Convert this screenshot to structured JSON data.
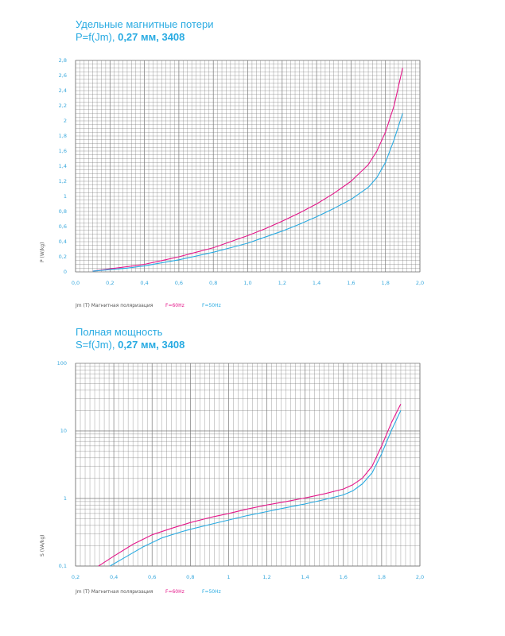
{
  "chart_data": [
    {
      "type": "line",
      "title": "Удельные магнитные потери",
      "subtitle_prefix": "P=f(Jm), ",
      "subtitle_bold": "0,27 мм, 3408",
      "xlabel": "Jm (T) Магнитная поляризация",
      "ylabel": "P (W/kg)",
      "xlim": [
        0,
        2.0
      ],
      "ylim": [
        0,
        2.8
      ],
      "x_ticks": [
        "0,0",
        "0,2",
        "0,4",
        "0,6",
        "0,8",
        "1,0",
        "1,2",
        "1,4",
        "1,6",
        "1,8",
        "2,0"
      ],
      "y_ticks": [
        "0",
        "0,2",
        "0,4",
        "0,6",
        "0,8",
        "1",
        "1,2",
        "1,4",
        "1,6",
        "1,8",
        "2",
        "2,2",
        "2,4",
        "2,6",
        "2,8"
      ],
      "grid": true,
      "series": [
        {
          "name": "F=60Hz",
          "color": "#e5178a",
          "x": [
            0.1,
            0.2,
            0.3,
            0.4,
            0.5,
            0.6,
            0.7,
            0.8,
            0.9,
            1.0,
            1.1,
            1.2,
            1.3,
            1.4,
            1.5,
            1.6,
            1.7,
            1.75,
            1.8,
            1.85,
            1.9
          ],
          "y": [
            0.01,
            0.04,
            0.07,
            0.1,
            0.15,
            0.2,
            0.26,
            0.32,
            0.4,
            0.48,
            0.57,
            0.67,
            0.78,
            0.9,
            1.04,
            1.2,
            1.42,
            1.6,
            1.85,
            2.2,
            2.7
          ]
        },
        {
          "name": "F=50Hz",
          "color": "#29abe2",
          "x": [
            0.1,
            0.2,
            0.3,
            0.4,
            0.5,
            0.6,
            0.7,
            0.8,
            0.9,
            1.0,
            1.1,
            1.2,
            1.3,
            1.4,
            1.5,
            1.6,
            1.7,
            1.75,
            1.8,
            1.85,
            1.9
          ],
          "y": [
            0.01,
            0.03,
            0.05,
            0.08,
            0.12,
            0.16,
            0.21,
            0.26,
            0.32,
            0.38,
            0.46,
            0.54,
            0.63,
            0.73,
            0.84,
            0.96,
            1.12,
            1.25,
            1.45,
            1.75,
            2.1
          ]
        }
      ]
    },
    {
      "type": "line",
      "title": "Полная мощность",
      "subtitle_prefix": "S=f(Jm), ",
      "subtitle_bold": "0,27 мм, 3408",
      "xlabel": "Jm (T) Магнитная поляризация",
      "ylabel": "S (VA/kg)",
      "xlim": [
        0.2,
        2.0
      ],
      "ylim": [
        0.1,
        100
      ],
      "y_scale": "log",
      "x_ticks": [
        "0,2",
        "0,4",
        "0,6",
        "0,8",
        "1",
        "1,2",
        "1,4",
        "1,6",
        "1,8",
        "2,0"
      ],
      "y_ticks": [
        "0,1",
        "1",
        "10",
        "100"
      ],
      "grid": true,
      "series": [
        {
          "name": "F=60Hz",
          "color": "#e5178a",
          "x": [
            0.32,
            0.4,
            0.5,
            0.6,
            0.7,
            0.8,
            0.9,
            1.0,
            1.1,
            1.2,
            1.3,
            1.4,
            1.5,
            1.6,
            1.65,
            1.7,
            1.75,
            1.8,
            1.85,
            1.9
          ],
          "y": [
            0.1,
            0.14,
            0.21,
            0.29,
            0.36,
            0.44,
            0.52,
            0.6,
            0.7,
            0.8,
            0.9,
            1.02,
            1.17,
            1.38,
            1.6,
            2.0,
            3.0,
            6.0,
            13.0,
            25.0
          ]
        },
        {
          "name": "F=50Hz",
          "color": "#29abe2",
          "x": [
            0.38,
            0.45,
            0.55,
            0.65,
            0.75,
            0.8,
            0.9,
            1.0,
            1.1,
            1.2,
            1.3,
            1.4,
            1.5,
            1.6,
            1.65,
            1.7,
            1.75,
            1.8,
            1.85,
            1.9
          ],
          "y": [
            0.1,
            0.13,
            0.19,
            0.26,
            0.32,
            0.35,
            0.41,
            0.48,
            0.56,
            0.64,
            0.73,
            0.83,
            0.96,
            1.13,
            1.3,
            1.65,
            2.4,
            4.6,
            10.0,
            20.0
          ]
        }
      ]
    }
  ]
}
